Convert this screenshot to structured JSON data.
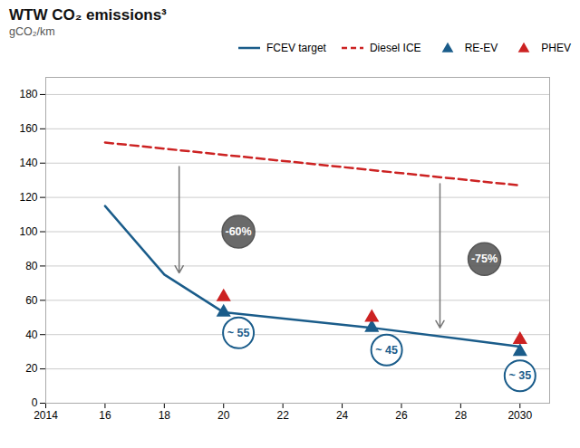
{
  "chart_data": {
    "type": "line",
    "title": "WTW CO₂ emissions³",
    "subtitle": "gCO₂/km",
    "xlim": [
      2014,
      2031
    ],
    "ylim": [
      0,
      190
    ],
    "xticks": [
      2014,
      {
        "value": 2016,
        "label": "16"
      },
      {
        "value": 2018,
        "label": "18"
      },
      {
        "value": 2020,
        "label": "20"
      },
      {
        "value": 2022,
        "label": "22"
      },
      {
        "value": 2024,
        "label": "24"
      },
      {
        "value": 2026,
        "label": "26"
      },
      {
        "value": 2028,
        "label": "28"
      },
      2030
    ],
    "yticks": [
      0,
      20,
      40,
      60,
      80,
      100,
      120,
      140,
      160,
      180
    ],
    "grid": true,
    "legend": "upper right",
    "series": [
      {
        "name": "FCEV target",
        "type": "line",
        "color": "#1a5c8a",
        "line_style": "solid",
        "x": [
          2016,
          2018,
          2020,
          2025,
          2030
        ],
        "values": [
          115,
          75,
          53,
          44,
          33
        ]
      },
      {
        "name": "Diesel ICE",
        "type": "line",
        "color": "#cc2222",
        "line_style": "dashed",
        "x": [
          2016,
          2030
        ],
        "values": [
          152,
          127
        ]
      },
      {
        "name": "RE-EV",
        "type": "scatter",
        "color": "#1a5c8a",
        "marker": "triangle-up",
        "x": [
          2020,
          2025,
          2030
        ],
        "values": [
          53,
          44,
          30
        ]
      },
      {
        "name": "PHEV",
        "type": "scatter",
        "color": "#cc2222",
        "marker": "triangle-up",
        "x": [
          2020,
          2025,
          2030
        ],
        "values": [
          62,
          50,
          37
        ]
      }
    ],
    "arrows": [
      {
        "x": 2018.5,
        "y_start": 138,
        "y_end": 76,
        "color": "#777777"
      },
      {
        "x": 2027.3,
        "y_start": 128,
        "y_end": 44,
        "color": "#777777"
      }
    ],
    "annotations": [
      {
        "text": "-60%",
        "x": 2020.5,
        "y": 100,
        "style": "badge",
        "color": "#555555"
      },
      {
        "text": "-75%",
        "x": 2028.8,
        "y": 84,
        "style": "badge",
        "color": "#555555"
      },
      {
        "text": "~ 55",
        "x": 2020.5,
        "y": 41,
        "style": "bubble",
        "color": "#1a5c8a"
      },
      {
        "text": "~ 45",
        "x": 2025.5,
        "y": 31,
        "style": "bubble",
        "color": "#1a5c8a"
      },
      {
        "text": "~ 35",
        "x": 2030,
        "y": 16,
        "style": "bubble",
        "color": "#1a5c8a"
      }
    ]
  }
}
